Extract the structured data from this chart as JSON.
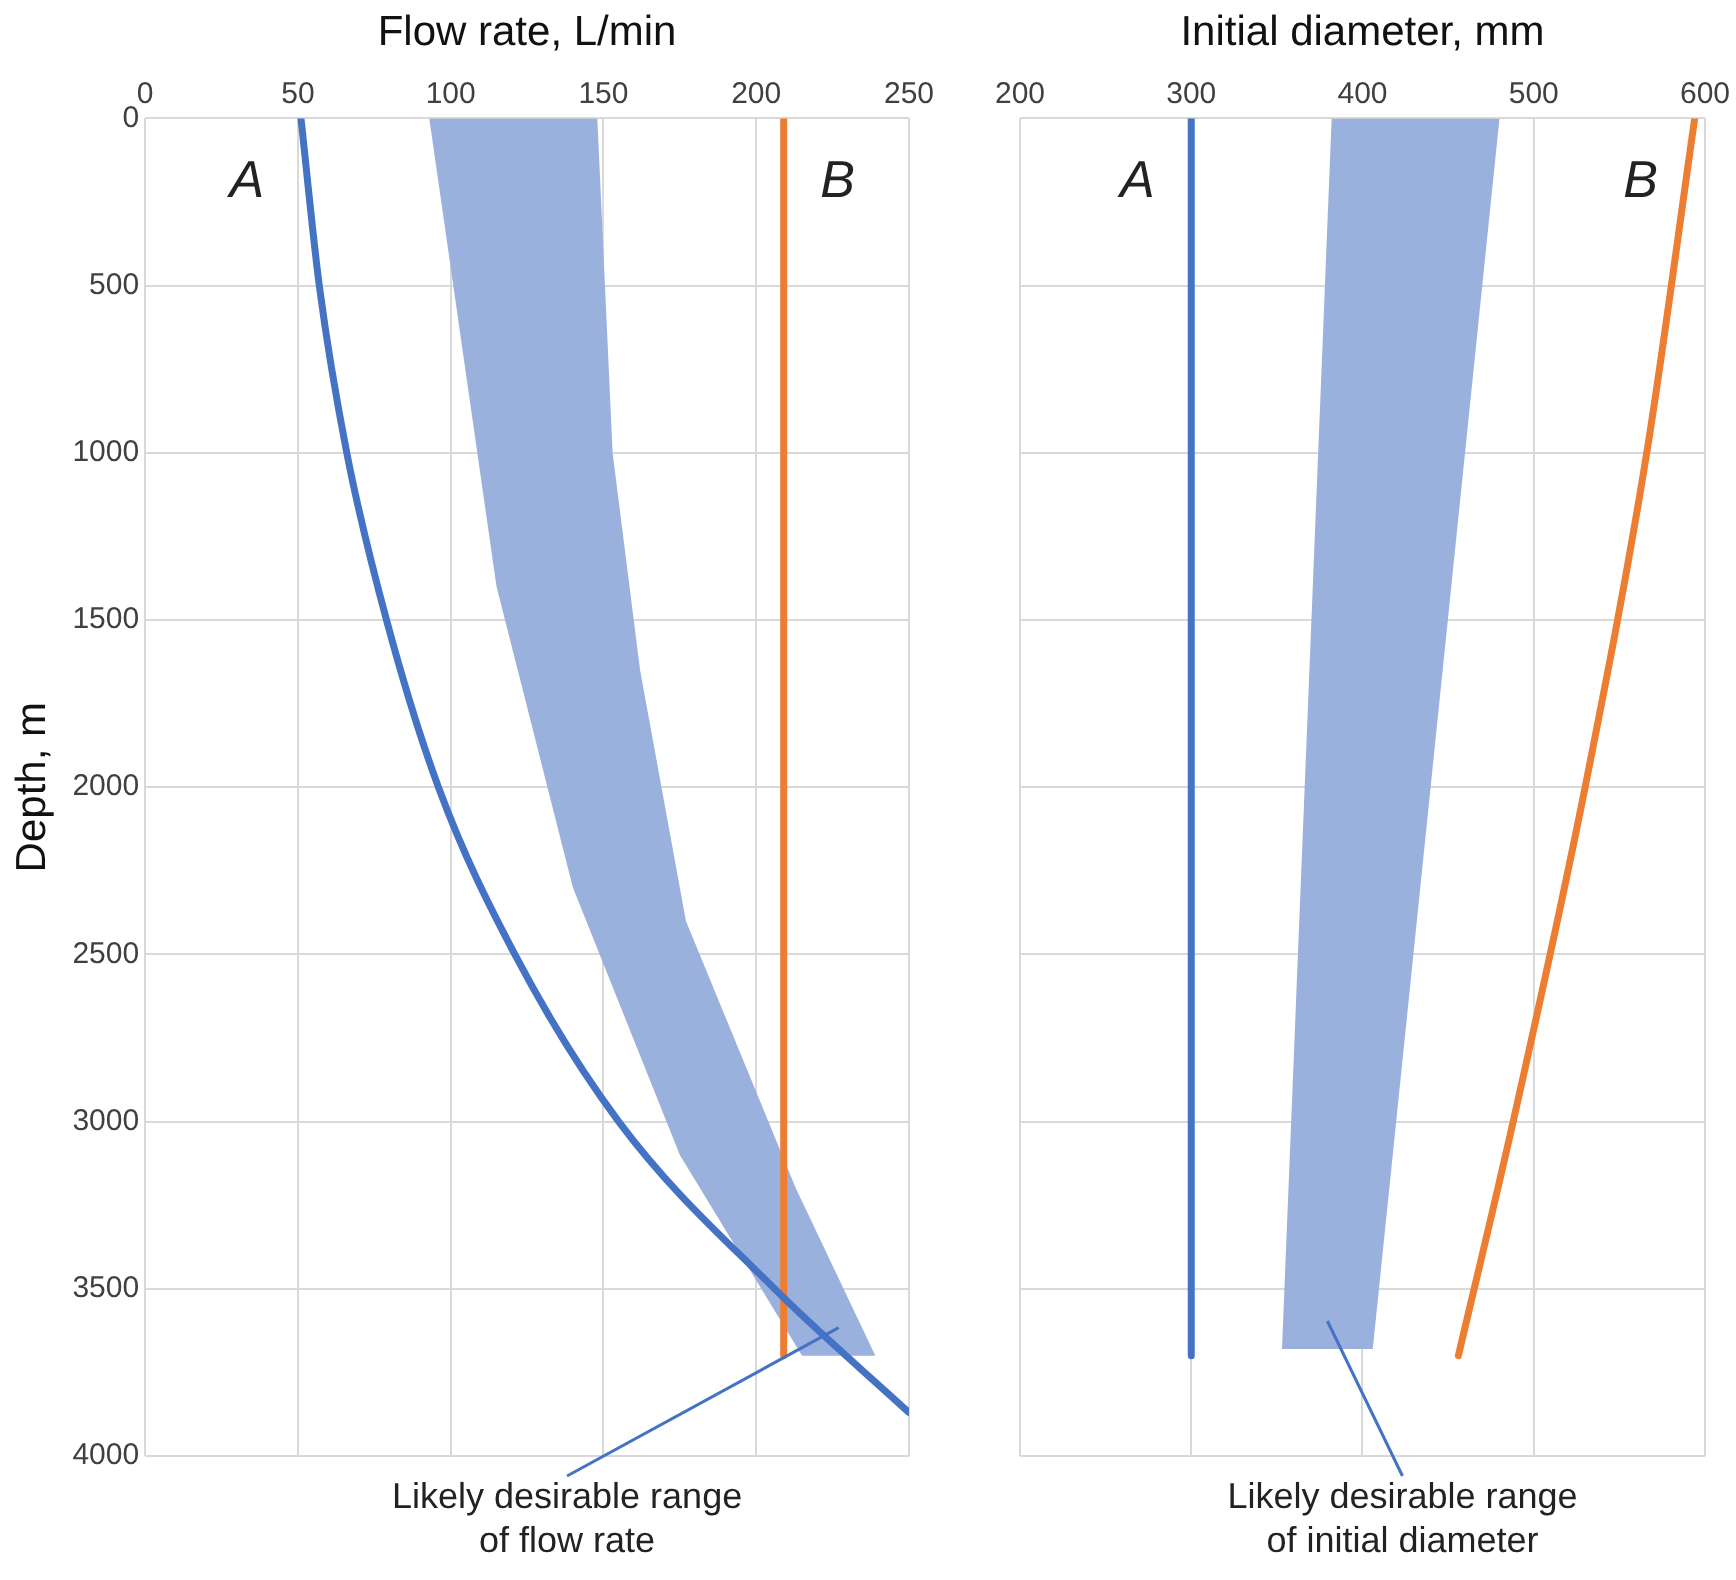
{
  "chart_data": [
    {
      "type": "line",
      "xlabel": "Flow rate, L/min",
      "ylabel": "Depth, m",
      "xlim": [
        0,
        250
      ],
      "xticks": [
        0,
        50,
        100,
        150,
        200,
        250
      ],
      "ylim": [
        4000,
        0
      ],
      "yticks": [
        0,
        500,
        1000,
        1500,
        2000,
        2500,
        3000,
        3500,
        4000
      ],
      "grid": true,
      "marker": "none",
      "series": [
        {
          "type": "area",
          "color": "#9bb1dd",
          "x": [
            93,
            115,
            140,
            175,
            215,
            239,
            213,
            177,
            162,
            153,
            148
          ],
          "values": [
            0,
            1400,
            2300,
            3100,
            3700,
            3700,
            3200,
            2400,
            1650,
            1000,
            0
          ]
        },
        {
          "name": "A",
          "color": "#4472c4",
          "x": [
            51,
            57,
            66,
            79,
            96,
            121,
            155,
            206,
            250
          ],
          "values": [
            0,
            500,
            1000,
            1500,
            2000,
            2500,
            3000,
            3500,
            3870
          ]
        },
        {
          "name": "B",
          "color": "#ed7d31",
          "x": [
            209,
            209
          ],
          "values": [
            0,
            3700
          ]
        }
      ],
      "annotations": [
        "Likely desirable range of flow rate"
      ]
    },
    {
      "type": "line",
      "xlabel": "Initial diameter, mm",
      "xlim": [
        200,
        600
      ],
      "xticks": [
        200,
        300,
        400,
        500,
        600
      ],
      "ylim": [
        4000,
        0
      ],
      "yticks": [
        0,
        500,
        1000,
        1500,
        2000,
        2500,
        3000,
        3500,
        4000
      ],
      "tick_labels": "x",
      "grid": true,
      "marker": "none",
      "series": [
        {
          "type": "area",
          "color": "#9bb1dd",
          "x": [
            382,
            353,
            406,
            480
          ],
          "values": [
            0,
            3680,
            3680,
            0
          ]
        },
        {
          "name": "A",
          "color": "#4472c4",
          "x": [
            300,
            300
          ],
          "values": [
            0,
            3700
          ]
        },
        {
          "name": "B",
          "color": "#ed7d31",
          "x": [
            594,
            566,
            530,
            488,
            456
          ],
          "values": [
            0,
            1000,
            2000,
            3000,
            3700
          ]
        }
      ],
      "annotations": [
        "Likely desirable range of initial diameter"
      ]
    }
  ]
}
